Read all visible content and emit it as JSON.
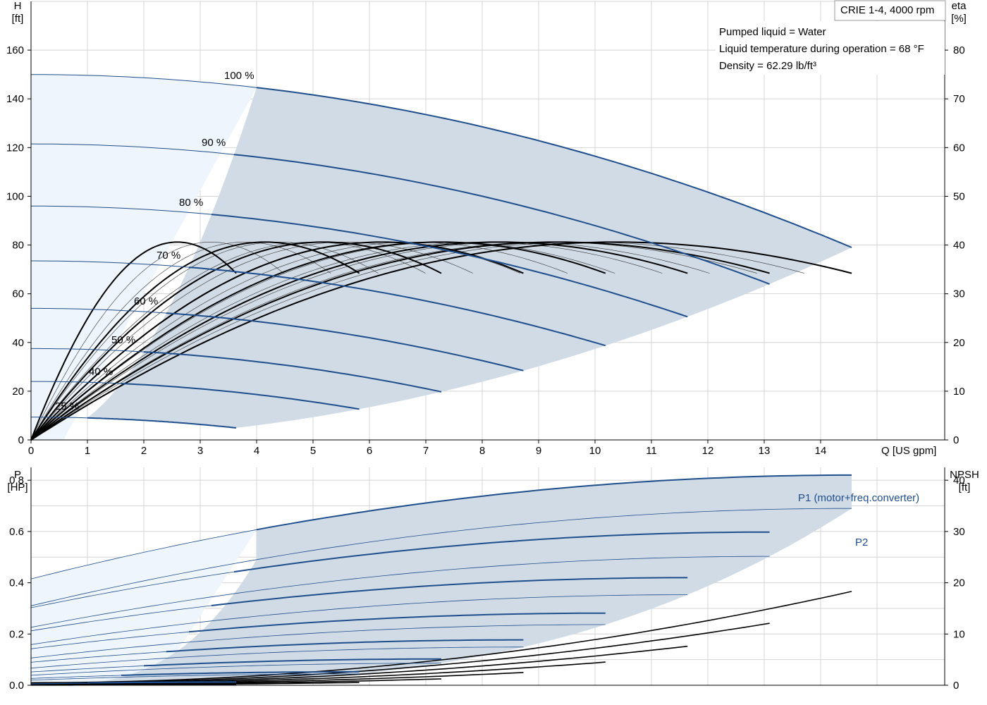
{
  "chart_data": [
    {
      "type": "line",
      "title_box": "CRIE 1-4, 4000 rpm",
      "notes": [
        "Pumped liquid = Water",
        "Liquid temperature during operation = 68 °F",
        "Density = 62.29 lb/ft³"
      ],
      "xlabel": "Q [US gpm]",
      "ylabel_left": [
        "H",
        "[ft]"
      ],
      "ylabel_right": [
        "eta",
        "[%]"
      ],
      "xlim": [
        0,
        16.2
      ],
      "ylim_left": [
        0,
        180
      ],
      "ylim_right": [
        0,
        90
      ],
      "x_ticks": [
        0,
        1,
        2,
        3,
        4,
        5,
        6,
        7,
        8,
        9,
        10,
        11,
        12,
        13,
        14
      ],
      "y_ticks_left": [
        0,
        20,
        40,
        60,
        80,
        100,
        120,
        140,
        160
      ],
      "y_ticks_right": [
        0,
        10,
        20,
        30,
        40,
        50,
        60,
        70,
        80
      ],
      "grid": true,
      "speed_labels": [
        "100 %",
        "90 %",
        "80 %",
        "70 %",
        "60 %",
        "50 %",
        "40 %",
        "25 %"
      ],
      "speed_fractions": [
        1.0,
        0.9,
        0.8,
        0.7,
        0.6,
        0.5,
        0.4,
        0.25
      ],
      "head_curves": {
        "shutoff_head_full_speed": 150,
        "max_flow_full_speed": 14.55,
        "head_at_max_flow_full_speed": 79,
        "note": "H = s^2 * H0 - (H0 - Hmax) * Q^2 / qmax^2, qmax = 14.55 * s"
      },
      "efficiency_curves": {
        "peak_percent": 40.5,
        "qbep_full_speed": 10.9,
        "efficiency_at_max_flow_full_speed": 35.3
      },
      "operating_area_min_flow_full_speed": 4.0
    },
    {
      "type": "line",
      "ylabel_left": [
        "P",
        "[HP]"
      ],
      "ylabel_right": [
        "NPSH",
        "[ft]"
      ],
      "xlim": [
        0,
        16.2
      ],
      "ylim_left": [
        0,
        0.85
      ],
      "ylim_right": [
        0,
        42.5
      ],
      "y_ticks_left": [
        0.0,
        0.2,
        0.4,
        0.6,
        0.8
      ],
      "y_ticks_left_labels": [
        "0.0",
        "0.2",
        "0.4",
        "0.6",
        "0.8"
      ],
      "y_ticks_right": [
        0,
        10,
        20,
        30,
        40
      ],
      "series_labels": [
        "P1 (motor+freq.converter)",
        "P2"
      ],
      "p1_full_speed": {
        "q0": 0.415,
        "qmax": 0.82
      },
      "p2_full_speed": {
        "q0": 0.31,
        "qmax": 0.69
      },
      "npsh_at_max_flow_full_speed": 17.8,
      "colors": {
        "curve_blue": "#1f4e8c",
        "area_fill": "#d0dbe6",
        "light_fill": "#eef5fc",
        "npsh": "#000000"
      }
    }
  ]
}
